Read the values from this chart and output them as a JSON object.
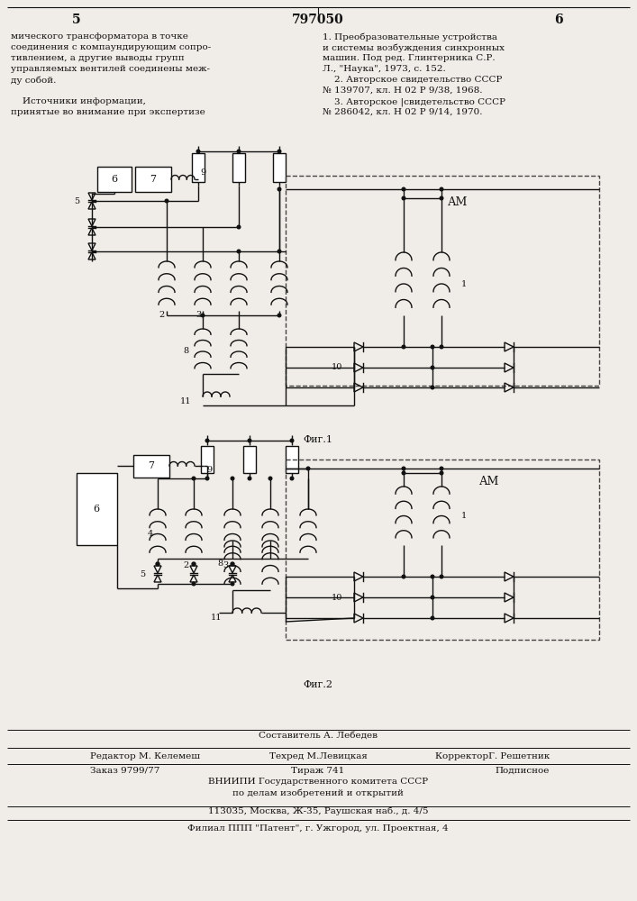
{
  "page_num_left": "5",
  "page_num_center": "797050",
  "page_num_right": "6",
  "bg_color": "#f0ede8",
  "line_color": "#111111",
  "text_color": "#111111",
  "left_text_lines": [
    "мического трансформатора в точке",
    "соединения с компаундирующим сопро-",
    "тивлением, а другие выводы групп",
    "управляемых вентилей соединены меж-",
    "ду собой.",
    "",
    "    Источники информации,",
    "принятые во внимание при экспертизе"
  ],
  "right_text_lines": [
    "1. Преобразовательные устройства",
    "и системы возбуждения синхронных",
    "машин. Под ред. Глинтерника С.Р.",
    "Л., \"Наука\", 1973, с. 152.",
    "    2. Авторское свидетельство СССР",
    "№ 139707, кл. Н 02 Р 9/38, 1968.",
    "    3. Авторское |свидетельство СССР",
    "№ 286042, кл. Н 02 Р 9/14, 1970."
  ],
  "fig1_label": "Фиг.1",
  "fig2_label": "Фиг.2",
  "footer_line1": "Составитель А. Лебедев",
  "footer_line2_left": "Редактор М. Келемеш",
  "footer_line2_mid": "Техред М.Левицкая",
  "footer_line2_right": "КорректорГ. Решетник",
  "footer_line3_left": "Заказ 9799/77",
  "footer_line3_mid": "Тираж 741",
  "footer_line3_right": "Подписное",
  "footer_line4": "ВНИИПИ Государственного комитета СССР",
  "footer_line5": "по делам изобретений и открытий",
  "footer_line6": "113035, Москва, Ж-35, Раушская наб., д. 4/5",
  "footer_line7": "Филиал ППП \"Патент\", г. Ужгород, ул. Проектная, 4"
}
